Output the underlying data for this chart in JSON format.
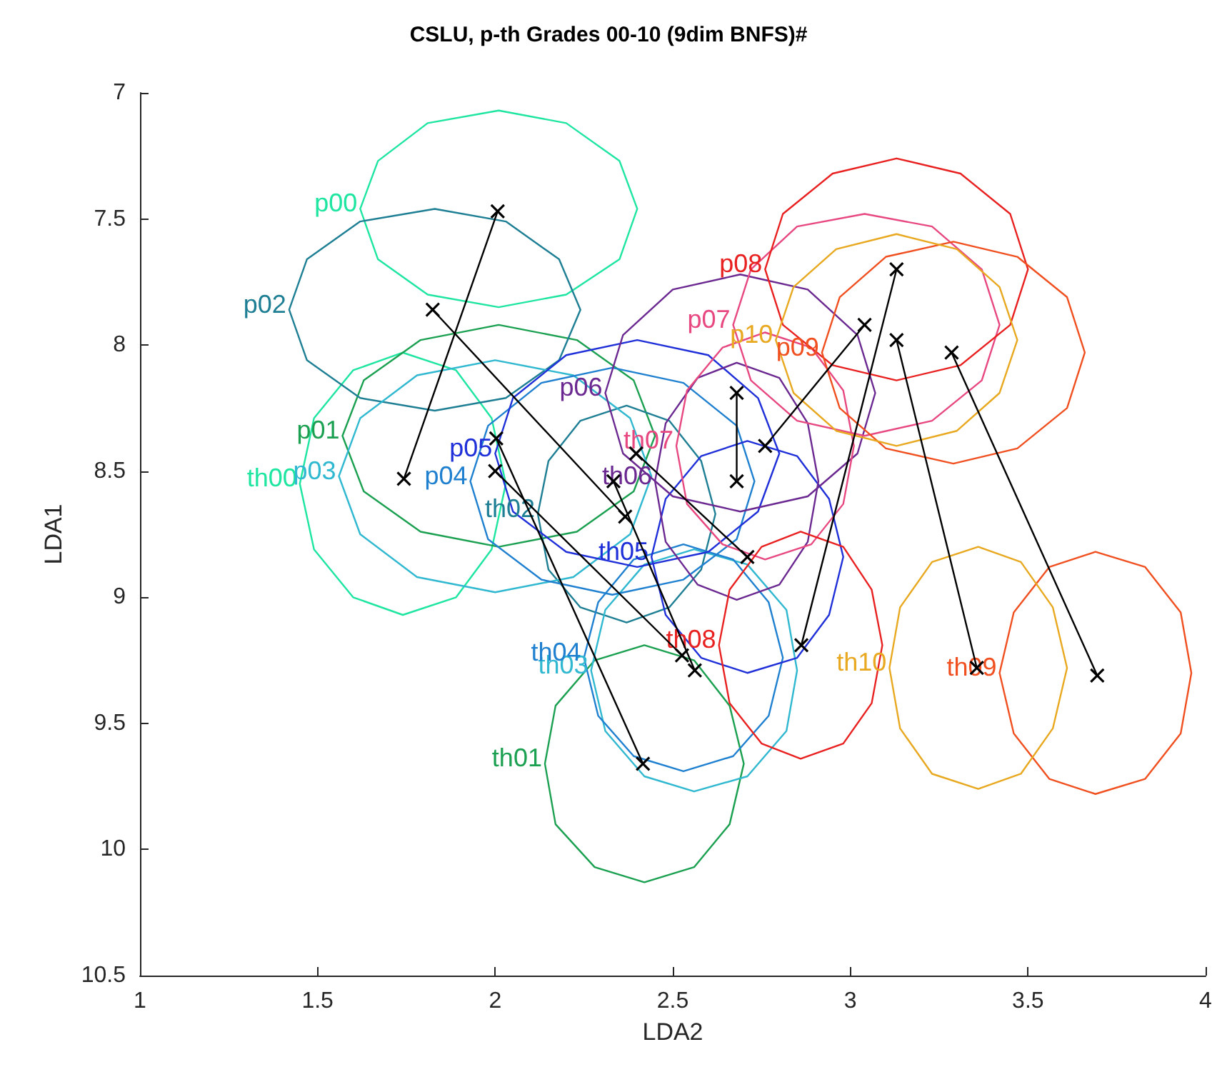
{
  "chart_data": {
    "type": "line",
    "title": "CSLU, p-th Grades 00-10 (9dim BNFS)#",
    "xlabel": "LDA2",
    "ylabel": "LDA1",
    "xlim": [
      1,
      4
    ],
    "xticks": [
      1,
      1.5,
      2,
      2.5,
      3,
      3.5,
      4
    ],
    "ylim": [
      10.5,
      7
    ],
    "yticks": [
      7,
      7.5,
      8,
      8.5,
      9,
      9.5,
      10,
      10.5
    ],
    "marker": "cross",
    "series": [
      {
        "name": "p00",
        "color": "#1ee5a0",
        "marker": "none",
        "x": [
          1.62,
          1.67,
          1.81,
          2.01,
          2.2,
          2.35,
          2.4,
          null,
          2.4,
          2.35,
          2.2,
          2.01,
          1.81,
          1.67,
          1.62
        ],
        "values": [
          7.46,
          7.27,
          7.12,
          7.07,
          7.12,
          7.27,
          7.46,
          null,
          7.46,
          7.66,
          7.8,
          7.85,
          7.8,
          7.66,
          7.46
        ]
      },
      {
        "name": "th00",
        "color": "#1ee5a0",
        "marker": "none",
        "x": [
          1.45,
          1.49,
          1.6,
          1.74,
          1.89,
          1.99,
          2.03,
          null,
          2.03,
          1.99,
          1.89,
          1.74,
          1.6,
          1.49,
          1.45
        ],
        "values": [
          8.55,
          8.29,
          8.1,
          8.03,
          8.1,
          8.29,
          8.55,
          null,
          8.55,
          8.81,
          9.0,
          9.07,
          9.0,
          8.81,
          8.55
        ]
      },
      {
        "name": "p01",
        "color": "#1aa050",
        "marker": "none",
        "x": [
          1.57,
          1.63,
          1.79,
          2.01,
          2.23,
          2.39,
          2.45,
          null,
          2.45,
          2.39,
          2.23,
          2.01,
          1.79,
          1.63,
          1.57
        ],
        "values": [
          8.36,
          8.14,
          7.98,
          7.92,
          7.98,
          8.14,
          8.36,
          null,
          8.36,
          8.58,
          8.74,
          8.8,
          8.74,
          8.58,
          8.36
        ]
      },
      {
        "name": "th01",
        "color": "#1aa050",
        "marker": "none",
        "x": [
          2.14,
          2.17,
          2.28,
          2.42,
          2.56,
          2.66,
          2.7,
          null,
          2.7,
          2.66,
          2.56,
          2.42,
          2.28,
          2.17,
          2.14
        ],
        "values": [
          9.66,
          9.43,
          9.25,
          9.19,
          9.25,
          9.43,
          9.66,
          null,
          9.66,
          9.9,
          10.07,
          10.13,
          10.07,
          9.9,
          9.66
        ]
      },
      {
        "name": "p02",
        "color": "#1e7f94",
        "marker": "none",
        "x": [
          1.42,
          1.47,
          1.62,
          1.83,
          2.03,
          2.18,
          2.24,
          null,
          2.24,
          2.18,
          2.03,
          1.83,
          1.62,
          1.47,
          1.42
        ],
        "values": [
          7.86,
          7.66,
          7.51,
          7.46,
          7.51,
          7.66,
          7.86,
          null,
          7.86,
          8.06,
          8.21,
          8.26,
          8.21,
          8.06,
          7.86
        ]
      },
      {
        "name": "th02",
        "color": "#1e7f94",
        "marker": "none",
        "x": [
          2.12,
          2.15,
          2.24,
          2.37,
          2.49,
          2.58,
          2.62,
          null,
          2.62,
          2.58,
          2.49,
          2.37,
          2.24,
          2.15,
          2.12
        ],
        "values": [
          8.67,
          8.46,
          8.3,
          8.24,
          8.3,
          8.46,
          8.67,
          null,
          8.67,
          8.89,
          9.04,
          9.1,
          9.04,
          8.89,
          8.67
        ]
      },
      {
        "name": "p03",
        "color": "#30b8d0",
        "marker": "none",
        "x": [
          1.56,
          1.62,
          1.78,
          2.0,
          2.22,
          2.38,
          2.44,
          null,
          2.44,
          2.38,
          2.22,
          2.0,
          1.78,
          1.62,
          1.56
        ],
        "values": [
          8.52,
          8.29,
          8.12,
          8.06,
          8.12,
          8.29,
          8.52,
          null,
          8.52,
          8.75,
          8.92,
          8.98,
          8.92,
          8.75,
          8.52
        ]
      },
      {
        "name": "th03",
        "color": "#30b8d0",
        "marker": "none",
        "x": [
          2.27,
          2.31,
          2.42,
          2.56,
          2.71,
          2.82,
          2.85,
          null,
          2.85,
          2.82,
          2.71,
          2.56,
          2.42,
          2.31,
          2.27
        ],
        "values": [
          9.29,
          9.05,
          8.87,
          8.81,
          8.87,
          9.05,
          9.29,
          null,
          9.29,
          9.53,
          9.71,
          9.77,
          9.71,
          9.53,
          9.29
        ]
      },
      {
        "name": "p04",
        "color": "#2080d0",
        "marker": "none",
        "x": [
          1.93,
          1.98,
          2.13,
          2.33,
          2.53,
          2.68,
          2.73,
          null,
          2.73,
          2.68,
          2.53,
          2.33,
          2.13,
          1.98,
          1.93
        ],
        "values": [
          8.54,
          8.32,
          8.15,
          8.09,
          8.15,
          8.32,
          8.54,
          null,
          8.54,
          8.77,
          8.93,
          8.99,
          8.93,
          8.77,
          8.54
        ]
      },
      {
        "name": "th04",
        "color": "#2080d0",
        "marker": "none",
        "x": [
          2.25,
          2.29,
          2.39,
          2.53,
          2.67,
          2.77,
          2.81,
          null,
          2.81,
          2.77,
          2.67,
          2.53,
          2.39,
          2.29,
          2.25
        ],
        "values": [
          9.24,
          9.02,
          8.85,
          8.79,
          8.85,
          9.02,
          9.24,
          null,
          9.24,
          9.47,
          9.63,
          9.69,
          9.63,
          9.47,
          9.24
        ]
      },
      {
        "name": "p05",
        "color": "#2030d8",
        "marker": "none",
        "x": [
          2.0,
          2.05,
          2.2,
          2.4,
          2.6,
          2.74,
          2.8,
          null,
          2.8,
          2.74,
          2.6,
          2.4,
          2.2,
          2.05,
          2.0
        ],
        "values": [
          8.43,
          8.21,
          8.04,
          7.98,
          8.04,
          8.21,
          8.43,
          null,
          8.43,
          8.66,
          8.82,
          8.88,
          8.82,
          8.66,
          8.43
        ]
      },
      {
        "name": "th05",
        "color": "#2030d8",
        "marker": "none",
        "x": [
          2.44,
          2.48,
          2.58,
          2.71,
          2.85,
          2.94,
          2.98,
          null,
          2.98,
          2.94,
          2.85,
          2.71,
          2.58,
          2.48,
          2.44
        ],
        "values": [
          8.84,
          8.61,
          8.44,
          8.38,
          8.44,
          8.61,
          8.84,
          null,
          8.84,
          9.07,
          9.24,
          9.3,
          9.24,
          9.07,
          8.84
        ]
      },
      {
        "name": "p06",
        "color": "#6a2890",
        "marker": "none",
        "x": [
          2.31,
          2.36,
          2.5,
          2.69,
          2.88,
          3.02,
          3.07,
          null,
          3.07,
          3.02,
          2.88,
          2.69,
          2.5,
          2.36,
          2.31
        ],
        "values": [
          8.19,
          7.96,
          7.78,
          7.72,
          7.78,
          7.96,
          8.19,
          null,
          8.19,
          8.43,
          8.6,
          8.66,
          8.6,
          8.43,
          8.19
        ]
      },
      {
        "name": "th06",
        "color": "#6a2890",
        "marker": "none",
        "x": [
          2.45,
          2.48,
          2.57,
          2.68,
          2.8,
          2.88,
          2.91,
          null,
          2.91,
          2.88,
          2.8,
          2.68,
          2.57,
          2.48,
          2.45
        ],
        "values": [
          8.54,
          8.31,
          8.13,
          8.07,
          8.13,
          8.31,
          8.54,
          null,
          8.54,
          8.78,
          8.95,
          9.01,
          8.95,
          8.78,
          8.54
        ]
      },
      {
        "name": "p07",
        "color": "#e84880",
        "marker": "none",
        "x": [
          2.67,
          2.72,
          2.85,
          3.04,
          3.23,
          3.37,
          3.42,
          null,
          3.42,
          3.37,
          3.23,
          3.04,
          2.85,
          2.72,
          2.67
        ],
        "values": [
          7.92,
          7.7,
          7.53,
          7.48,
          7.53,
          7.7,
          7.92,
          null,
          7.92,
          8.14,
          8.3,
          8.36,
          8.3,
          8.14,
          7.92
        ]
      },
      {
        "name": "th07",
        "color": "#e84880",
        "marker": "none",
        "x": [
          2.51,
          2.54,
          2.64,
          2.76,
          2.89,
          2.98,
          3.01,
          null,
          3.01,
          2.98,
          2.89,
          2.76,
          2.64,
          2.54,
          2.51
        ],
        "values": [
          8.4,
          8.18,
          8.01,
          7.95,
          8.01,
          8.18,
          8.4,
          null,
          8.4,
          8.63,
          8.79,
          8.85,
          8.79,
          8.63,
          8.4
        ]
      },
      {
        "name": "p08",
        "color": "#e82020",
        "marker": "none",
        "x": [
          2.76,
          2.81,
          2.95,
          3.13,
          3.31,
          3.45,
          3.5,
          null,
          3.5,
          3.45,
          3.31,
          3.13,
          2.95,
          2.81,
          2.76
        ],
        "values": [
          7.7,
          7.48,
          7.32,
          7.26,
          7.32,
          7.48,
          7.7,
          null,
          7.7,
          7.92,
          8.08,
          8.14,
          8.08,
          7.92,
          7.7
        ]
      },
      {
        "name": "th08",
        "color": "#e82020",
        "marker": "none",
        "x": [
          2.63,
          2.66,
          2.75,
          2.86,
          2.98,
          3.06,
          3.09,
          null,
          3.09,
          3.06,
          2.98,
          2.86,
          2.75,
          2.66,
          2.63
        ],
        "values": [
          9.19,
          8.97,
          8.8,
          8.74,
          8.8,
          8.97,
          9.19,
          null,
          9.19,
          9.42,
          9.58,
          9.64,
          9.58,
          9.42,
          9.19
        ]
      },
      {
        "name": "p09",
        "color": "#f05020",
        "marker": "none",
        "x": [
          2.92,
          2.97,
          3.1,
          3.29,
          3.47,
          3.61,
          3.66,
          null,
          3.66,
          3.61,
          3.47,
          3.29,
          3.1,
          2.97,
          2.92
        ],
        "values": [
          8.03,
          7.81,
          7.65,
          7.59,
          7.65,
          7.81,
          8.03,
          null,
          8.03,
          8.25,
          8.41,
          8.47,
          8.41,
          8.25,
          8.03
        ]
      },
      {
        "name": "th09",
        "color": "#f05020",
        "marker": "none",
        "x": [
          3.42,
          3.46,
          3.56,
          3.69,
          3.83,
          3.93,
          3.96,
          null,
          3.96,
          3.93,
          3.83,
          3.69,
          3.56,
          3.46,
          3.42
        ],
        "values": [
          9.3,
          9.06,
          8.88,
          8.82,
          8.88,
          9.06,
          9.3,
          null,
          9.3,
          9.54,
          9.72,
          9.78,
          9.72,
          9.54,
          9.3
        ]
      },
      {
        "name": "p10",
        "color": "#e8a820",
        "marker": "none",
        "x": [
          2.79,
          2.84,
          2.96,
          3.13,
          3.3,
          3.42,
          3.47,
          null,
          3.47,
          3.42,
          3.3,
          3.13,
          2.96,
          2.84,
          2.79
        ],
        "values": [
          7.98,
          7.77,
          7.62,
          7.56,
          7.62,
          7.77,
          7.98,
          null,
          7.98,
          8.19,
          8.34,
          8.4,
          8.34,
          8.19,
          7.98
        ]
      },
      {
        "name": "th10",
        "color": "#e8a820",
        "marker": "none",
        "x": [
          3.11,
          3.14,
          3.23,
          3.36,
          3.48,
          3.57,
          3.61,
          null,
          3.61,
          3.57,
          3.48,
          3.36,
          3.23,
          3.14,
          3.11
        ],
        "values": [
          9.28,
          9.04,
          8.86,
          8.8,
          8.86,
          9.04,
          9.28,
          null,
          9.28,
          9.52,
          9.7,
          9.76,
          9.7,
          9.52,
          9.28
        ]
      },
      {
        "color": "#000000",
        "x": [
          1.743,
          2.007
        ],
        "values": [
          8.53,
          7.47
        ]
      },
      {
        "color": "#000000",
        "x": [
          2.003,
          2.416
        ],
        "values": [
          8.37,
          9.66
        ]
      },
      {
        "color": "#000000",
        "x": [
          1.824,
          2.366
        ],
        "values": [
          7.86,
          8.68
        ]
      },
      {
        "color": "#000000",
        "x": [
          2.0,
          2.526
        ],
        "values": [
          8.5,
          9.23
        ]
      },
      {
        "color": "#000000",
        "x": [
          2.333,
          2.562
        ],
        "values": [
          8.54,
          9.29
        ]
      },
      {
        "color": "#000000",
        "x": [
          2.397,
          2.71
        ],
        "values": [
          8.43,
          8.84
        ]
      },
      {
        "color": "#000000",
        "x": [
          2.68,
          2.68
        ],
        "values": [
          8.19,
          8.54
        ]
      },
      {
        "color": "#000000",
        "x": [
          2.76,
          3.04
        ],
        "values": [
          8.4,
          7.92
        ]
      },
      {
        "color": "#000000",
        "x": [
          2.862,
          3.13
        ],
        "values": [
          9.19,
          7.7
        ]
      },
      {
        "color": "#000000",
        "x": [
          3.285,
          3.695
        ],
        "values": [
          8.03,
          9.31
        ]
      },
      {
        "color": "#000000",
        "x": [
          3.13,
          3.356
        ],
        "values": [
          7.98,
          9.28
        ]
      }
    ]
  }
}
